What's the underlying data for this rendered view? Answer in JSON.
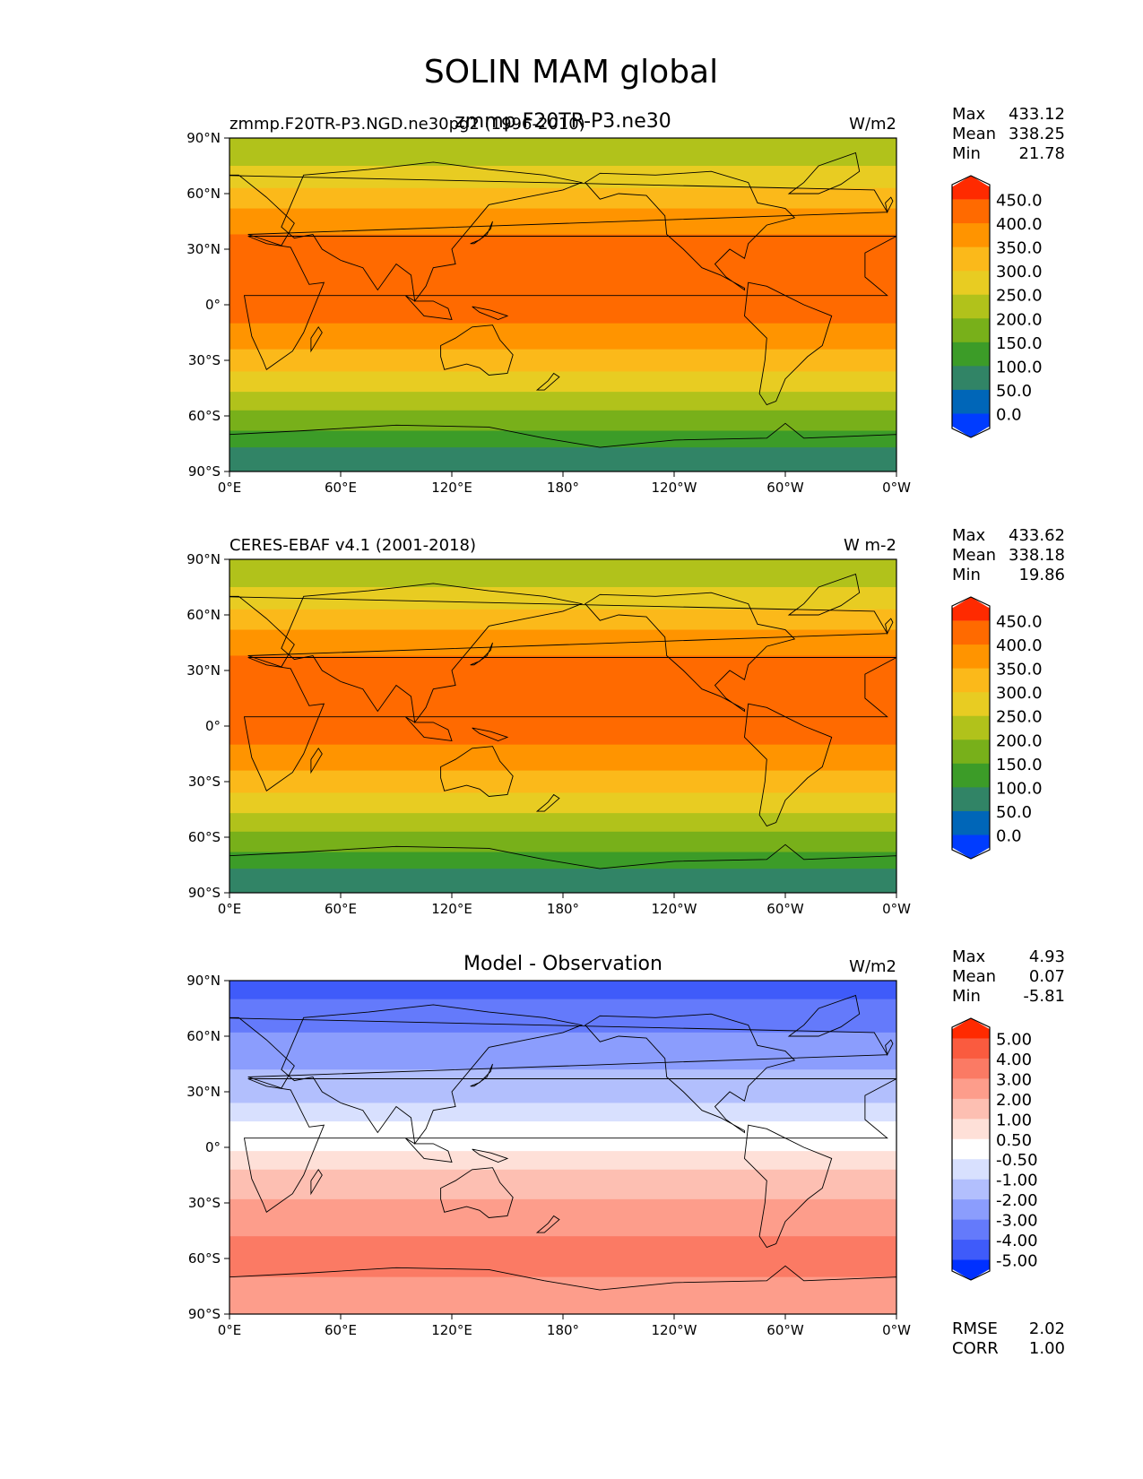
{
  "figure": {
    "title": "SOLIN MAM global"
  },
  "chart_data": [
    {
      "type": "heatmap",
      "panel": "test",
      "title_left": "zmmp.F20TR-P3.NGD.ne30pg2 (1996-2010)",
      "title_center": "zmmp.F20TR-P3.ne30",
      "units": "W/m2",
      "stats": [
        {
          "label": "Max",
          "value": "433.12"
        },
        {
          "label": "Mean",
          "value": "338.25"
        },
        {
          "label": "Min",
          "value": "21.78"
        }
      ],
      "colorbar": {
        "ticks": [
          "450.0",
          "400.0",
          "350.0",
          "300.0",
          "250.0",
          "200.0",
          "150.0",
          "100.0",
          "50.0",
          "0.0"
        ],
        "colors": [
          "#ff2a00",
          "#ff6a00",
          "#ff9400",
          "#fbb91a",
          "#e8cc22",
          "#b1c21b",
          "#78b01a",
          "#3c9c28",
          "#318466",
          "#0066b8",
          "#003cff"
        ]
      },
      "bands": [
        {
          "lat_min": 75,
          "lat_max": 90,
          "value": 225
        },
        {
          "lat_min": 63,
          "lat_max": 75,
          "value": 275
        },
        {
          "lat_min": 52,
          "lat_max": 63,
          "value": 325
        },
        {
          "lat_min": 38,
          "lat_max": 52,
          "value": 375
        },
        {
          "lat_min": -10,
          "lat_max": 38,
          "value": 425
        },
        {
          "lat_min": -24,
          "lat_max": -10,
          "value": 375
        },
        {
          "lat_min": -36,
          "lat_max": -24,
          "value": 325
        },
        {
          "lat_min": -47,
          "lat_max": -36,
          "value": 275
        },
        {
          "lat_min": -57,
          "lat_max": -47,
          "value": 225
        },
        {
          "lat_min": -68,
          "lat_max": -57,
          "value": 175
        },
        {
          "lat_min": -77,
          "lat_max": -68,
          "value": 125
        },
        {
          "lat_min": -90,
          "lat_max": -77,
          "value": 75
        }
      ],
      "xticks": [
        "0°E",
        "60°E",
        "120°E",
        "180°",
        "120°W",
        "60°W",
        "0°W"
      ],
      "yticks": [
        "90°N",
        "60°N",
        "30°N",
        "0°",
        "30°S",
        "60°S",
        "90°S"
      ],
      "xlim": [
        0,
        360
      ],
      "ylim": [
        -90,
        90
      ]
    },
    {
      "type": "heatmap",
      "panel": "reference",
      "title_left": "CERES-EBAF v4.1 (2001-2018)",
      "title_center": "",
      "units": "W m-2",
      "stats": [
        {
          "label": "Max",
          "value": "433.62"
        },
        {
          "label": "Mean",
          "value": "338.18"
        },
        {
          "label": "Min",
          "value": "19.86"
        }
      ],
      "colorbar": {
        "ticks": [
          "450.0",
          "400.0",
          "350.0",
          "300.0",
          "250.0",
          "200.0",
          "150.0",
          "100.0",
          "50.0",
          "0.0"
        ],
        "colors": [
          "#ff2a00",
          "#ff6a00",
          "#ff9400",
          "#fbb91a",
          "#e8cc22",
          "#b1c21b",
          "#78b01a",
          "#3c9c28",
          "#318466",
          "#0066b8",
          "#003cff"
        ]
      },
      "bands": [
        {
          "lat_min": 75,
          "lat_max": 90,
          "value": 225
        },
        {
          "lat_min": 63,
          "lat_max": 75,
          "value": 275
        },
        {
          "lat_min": 52,
          "lat_max": 63,
          "value": 325
        },
        {
          "lat_min": 38,
          "lat_max": 52,
          "value": 375
        },
        {
          "lat_min": -10,
          "lat_max": 38,
          "value": 425
        },
        {
          "lat_min": -24,
          "lat_max": -10,
          "value": 375
        },
        {
          "lat_min": -36,
          "lat_max": -24,
          "value": 325
        },
        {
          "lat_min": -47,
          "lat_max": -36,
          "value": 275
        },
        {
          "lat_min": -57,
          "lat_max": -47,
          "value": 225
        },
        {
          "lat_min": -68,
          "lat_max": -57,
          "value": 175
        },
        {
          "lat_min": -77,
          "lat_max": -68,
          "value": 125
        },
        {
          "lat_min": -90,
          "lat_max": -77,
          "value": 75
        }
      ],
      "xticks": [
        "0°E",
        "60°E",
        "120°E",
        "180°",
        "120°W",
        "60°W",
        "0°W"
      ],
      "yticks": [
        "90°N",
        "60°N",
        "30°N",
        "0°",
        "30°S",
        "60°S",
        "90°S"
      ],
      "xlim": [
        0,
        360
      ],
      "ylim": [
        -90,
        90
      ]
    },
    {
      "type": "heatmap",
      "panel": "difference",
      "title_left": "",
      "title_center": "Model - Observation",
      "units": "W/m2",
      "stats": [
        {
          "label": "Max",
          "value": "4.93"
        },
        {
          "label": "Mean",
          "value": "0.07"
        },
        {
          "label": "Min",
          "value": "-5.81"
        }
      ],
      "extra_stats": [
        {
          "label": "RMSE",
          "value": "2.02"
        },
        {
          "label": "CORR",
          "value": "1.00"
        }
      ],
      "colorbar": {
        "ticks": [
          "5.00",
          "4.00",
          "3.00",
          "2.00",
          "1.00",
          "0.50",
          "-0.50",
          "-1.00",
          "-2.00",
          "-3.00",
          "-4.00",
          "-5.00"
        ],
        "colors": [
          "#ff2a00",
          "#fa5b3f",
          "#fb7a64",
          "#fd9d8b",
          "#fdbfb2",
          "#fee0d8",
          "#ffffff",
          "#d8e0fe",
          "#b2bffd",
          "#8b9dfd",
          "#647afb",
          "#3f5bfa",
          "#0030ff"
        ]
      },
      "bands": [
        {
          "lat_min": 80,
          "lat_max": 90,
          "value": -4.5
        },
        {
          "lat_min": 62,
          "lat_max": 80,
          "value": -3.5
        },
        {
          "lat_min": 42,
          "lat_max": 62,
          "value": -2.5
        },
        {
          "lat_min": 24,
          "lat_max": 42,
          "value": -1.5
        },
        {
          "lat_min": 14,
          "lat_max": 24,
          "value": -0.75
        },
        {
          "lat_min": -2,
          "lat_max": 14,
          "value": 0
        },
        {
          "lat_min": -12,
          "lat_max": -2,
          "value": 0.75
        },
        {
          "lat_min": -28,
          "lat_max": -12,
          "value": 1.5
        },
        {
          "lat_min": -48,
          "lat_max": -28,
          "value": 2.5
        },
        {
          "lat_min": -70,
          "lat_max": -48,
          "value": 3.5
        },
        {
          "lat_min": -90,
          "lat_max": -70,
          "value": 2.5
        }
      ],
      "xticks": [
        "0°E",
        "60°E",
        "120°E",
        "180°",
        "120°W",
        "60°W",
        "0°W"
      ],
      "yticks": [
        "90°N",
        "60°N",
        "30°N",
        "0°",
        "30°S",
        "60°S",
        "90°S"
      ],
      "xlim": [
        0,
        360
      ],
      "ylim": [
        -90,
        90
      ]
    }
  ]
}
